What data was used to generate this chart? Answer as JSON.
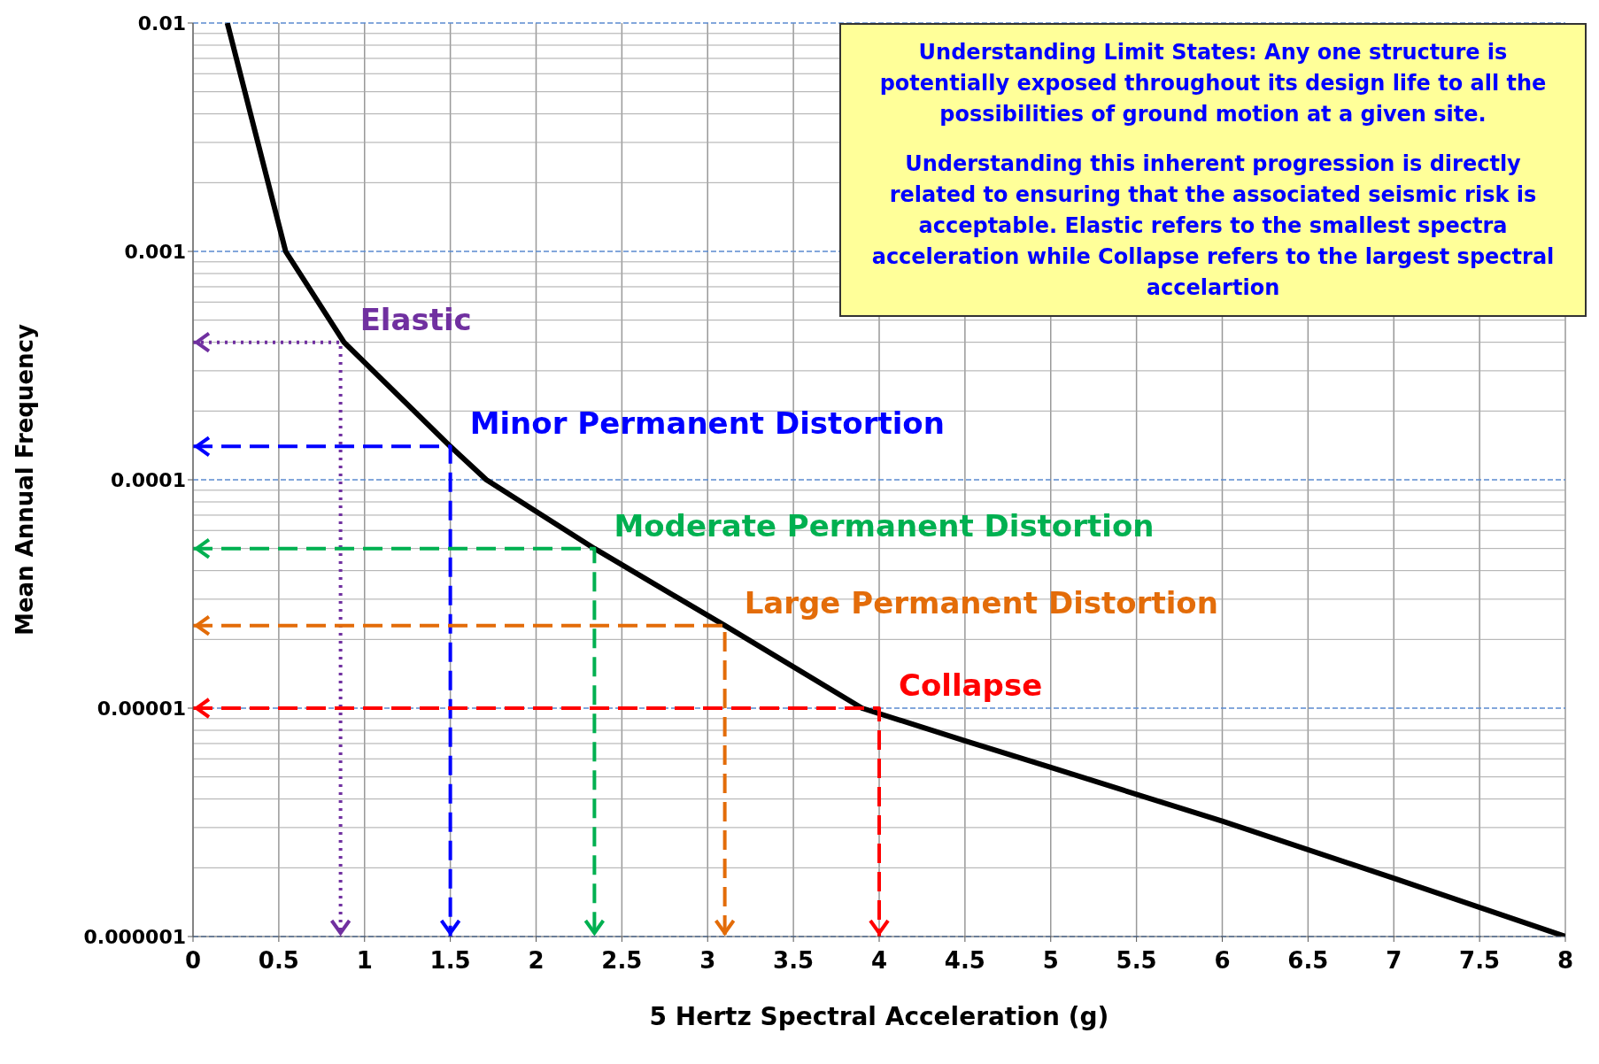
{
  "chart_data": {
    "type": "line",
    "xlabel": "5 Hertz Spectral Acceleration (g)",
    "ylabel": "Mean Annual Frequency",
    "annotations": [
      "Understanding Limit States:  Any one structure is potentially exposed throughout its design life to all the possibilities of ground motion at a given site.",
      "Understanding this inherent progression is directly related to ensuring that the associated seismic risk is acceptable.  Elastic refers to the smallest spectra acceleration while Collapse refers to the largest spectral accelartion"
    ],
    "log": "y",
    "grid": true,
    "marker": "none",
    "xlim": [
      0,
      8
    ],
    "xticks": [
      0,
      0.5,
      1,
      1.5,
      2,
      2.5,
      3,
      3.5,
      4,
      4.5,
      5,
      5.5,
      6,
      6.5,
      7,
      7.5,
      8
    ],
    "ylim": [
      1e-06,
      0.01
    ],
    "yticks": [
      {
        "value": 1e-06,
        "label": "0.000001"
      },
      {
        "value": 1e-05,
        "label": "0.00001"
      },
      {
        "value": 0.0001,
        "label": "0.0001"
      },
      {
        "value": 0.001,
        "label": "0.001"
      },
      {
        "value": 0.01,
        "label": "0.01"
      }
    ],
    "series": [
      {
        "color": "#000000",
        "line_style": "solid",
        "x": [
          0.2,
          0.54,
          0.88,
          1.5,
          1.71,
          2.34,
          3.1,
          3.9,
          4.5,
          5,
          6,
          7,
          8
        ],
        "values": [
          0.01,
          0.001,
          0.0004,
          0.00014,
          0.0001,
          5e-05,
          2.3e-05,
          1e-05,
          7.2e-06,
          5.5e-06,
          3.2e-06,
          1.8e-06,
          1e-06
        ]
      },
      {
        "name": "Elastic",
        "color": "#7030a0",
        "line_style": "dotted",
        "x": [
          0,
          0.86,
          0.86
        ],
        "values": [
          0.0004,
          0.0004,
          1e-06
        ]
      },
      {
        "name": "Minor Permanent Distortion",
        "color": "#0000ff",
        "line_style": "dashed",
        "x": [
          0,
          1.5,
          1.5
        ],
        "values": [
          0.00014,
          0.00014,
          1e-06
        ]
      },
      {
        "name": "Moderate Permanent Distortion",
        "color": "#00b050",
        "line_style": "dashed",
        "x": [
          0,
          2.34,
          2.34
        ],
        "values": [
          5e-05,
          5e-05,
          1e-06
        ]
      },
      {
        "name": "Large Permanent Distortion",
        "color": "#e36c09",
        "line_style": "dashed",
        "x": [
          0,
          3.1,
          3.1
        ],
        "values": [
          2.3e-05,
          2.3e-05,
          1e-06
        ]
      },
      {
        "name": "Collapse",
        "color": "#ff0000",
        "line_style": "dashed",
        "x": [
          0,
          4,
          4
        ],
        "values": [
          1e-05,
          1e-05,
          1e-06
        ]
      }
    ]
  }
}
